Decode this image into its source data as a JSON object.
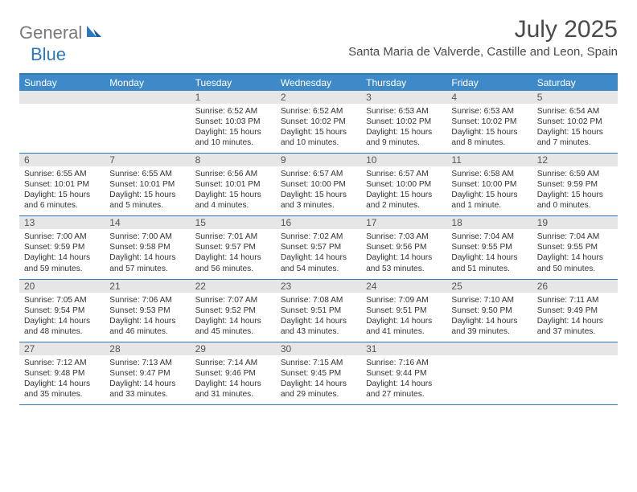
{
  "brand": {
    "part1": "General",
    "part2": "Blue"
  },
  "title": "July 2025",
  "location": "Santa Maria de Valverde, Castille and Leon, Spain",
  "colors": {
    "header_bar": "#3e8ac9",
    "border": "#2d78bc",
    "daynum_bg": "#e6e6e6",
    "text": "#333333",
    "logo_gray": "#7a7a7a",
    "logo_blue": "#2d78bc",
    "background": "#ffffff"
  },
  "typography": {
    "title_fontsize": 30,
    "location_fontsize": 15,
    "dow_fontsize": 12,
    "daynum_fontsize": 12,
    "body_fontsize": 10.2
  },
  "days_of_week": [
    "Sunday",
    "Monday",
    "Tuesday",
    "Wednesday",
    "Thursday",
    "Friday",
    "Saturday"
  ],
  "weeks": [
    [
      {
        "num": "",
        "sunrise": "",
        "sunset": "",
        "daylight": ""
      },
      {
        "num": "",
        "sunrise": "",
        "sunset": "",
        "daylight": ""
      },
      {
        "num": "1",
        "sunrise": "Sunrise: 6:52 AM",
        "sunset": "Sunset: 10:03 PM",
        "daylight": "Daylight: 15 hours and 10 minutes."
      },
      {
        "num": "2",
        "sunrise": "Sunrise: 6:52 AM",
        "sunset": "Sunset: 10:02 PM",
        "daylight": "Daylight: 15 hours and 10 minutes."
      },
      {
        "num": "3",
        "sunrise": "Sunrise: 6:53 AM",
        "sunset": "Sunset: 10:02 PM",
        "daylight": "Daylight: 15 hours and 9 minutes."
      },
      {
        "num": "4",
        "sunrise": "Sunrise: 6:53 AM",
        "sunset": "Sunset: 10:02 PM",
        "daylight": "Daylight: 15 hours and 8 minutes."
      },
      {
        "num": "5",
        "sunrise": "Sunrise: 6:54 AM",
        "sunset": "Sunset: 10:02 PM",
        "daylight": "Daylight: 15 hours and 7 minutes."
      }
    ],
    [
      {
        "num": "6",
        "sunrise": "Sunrise: 6:55 AM",
        "sunset": "Sunset: 10:01 PM",
        "daylight": "Daylight: 15 hours and 6 minutes."
      },
      {
        "num": "7",
        "sunrise": "Sunrise: 6:55 AM",
        "sunset": "Sunset: 10:01 PM",
        "daylight": "Daylight: 15 hours and 5 minutes."
      },
      {
        "num": "8",
        "sunrise": "Sunrise: 6:56 AM",
        "sunset": "Sunset: 10:01 PM",
        "daylight": "Daylight: 15 hours and 4 minutes."
      },
      {
        "num": "9",
        "sunrise": "Sunrise: 6:57 AM",
        "sunset": "Sunset: 10:00 PM",
        "daylight": "Daylight: 15 hours and 3 minutes."
      },
      {
        "num": "10",
        "sunrise": "Sunrise: 6:57 AM",
        "sunset": "Sunset: 10:00 PM",
        "daylight": "Daylight: 15 hours and 2 minutes."
      },
      {
        "num": "11",
        "sunrise": "Sunrise: 6:58 AM",
        "sunset": "Sunset: 10:00 PM",
        "daylight": "Daylight: 15 hours and 1 minute."
      },
      {
        "num": "12",
        "sunrise": "Sunrise: 6:59 AM",
        "sunset": "Sunset: 9:59 PM",
        "daylight": "Daylight: 15 hours and 0 minutes."
      }
    ],
    [
      {
        "num": "13",
        "sunrise": "Sunrise: 7:00 AM",
        "sunset": "Sunset: 9:59 PM",
        "daylight": "Daylight: 14 hours and 59 minutes."
      },
      {
        "num": "14",
        "sunrise": "Sunrise: 7:00 AM",
        "sunset": "Sunset: 9:58 PM",
        "daylight": "Daylight: 14 hours and 57 minutes."
      },
      {
        "num": "15",
        "sunrise": "Sunrise: 7:01 AM",
        "sunset": "Sunset: 9:57 PM",
        "daylight": "Daylight: 14 hours and 56 minutes."
      },
      {
        "num": "16",
        "sunrise": "Sunrise: 7:02 AM",
        "sunset": "Sunset: 9:57 PM",
        "daylight": "Daylight: 14 hours and 54 minutes."
      },
      {
        "num": "17",
        "sunrise": "Sunrise: 7:03 AM",
        "sunset": "Sunset: 9:56 PM",
        "daylight": "Daylight: 14 hours and 53 minutes."
      },
      {
        "num": "18",
        "sunrise": "Sunrise: 7:04 AM",
        "sunset": "Sunset: 9:55 PM",
        "daylight": "Daylight: 14 hours and 51 minutes."
      },
      {
        "num": "19",
        "sunrise": "Sunrise: 7:04 AM",
        "sunset": "Sunset: 9:55 PM",
        "daylight": "Daylight: 14 hours and 50 minutes."
      }
    ],
    [
      {
        "num": "20",
        "sunrise": "Sunrise: 7:05 AM",
        "sunset": "Sunset: 9:54 PM",
        "daylight": "Daylight: 14 hours and 48 minutes."
      },
      {
        "num": "21",
        "sunrise": "Sunrise: 7:06 AM",
        "sunset": "Sunset: 9:53 PM",
        "daylight": "Daylight: 14 hours and 46 minutes."
      },
      {
        "num": "22",
        "sunrise": "Sunrise: 7:07 AM",
        "sunset": "Sunset: 9:52 PM",
        "daylight": "Daylight: 14 hours and 45 minutes."
      },
      {
        "num": "23",
        "sunrise": "Sunrise: 7:08 AM",
        "sunset": "Sunset: 9:51 PM",
        "daylight": "Daylight: 14 hours and 43 minutes."
      },
      {
        "num": "24",
        "sunrise": "Sunrise: 7:09 AM",
        "sunset": "Sunset: 9:51 PM",
        "daylight": "Daylight: 14 hours and 41 minutes."
      },
      {
        "num": "25",
        "sunrise": "Sunrise: 7:10 AM",
        "sunset": "Sunset: 9:50 PM",
        "daylight": "Daylight: 14 hours and 39 minutes."
      },
      {
        "num": "26",
        "sunrise": "Sunrise: 7:11 AM",
        "sunset": "Sunset: 9:49 PM",
        "daylight": "Daylight: 14 hours and 37 minutes."
      }
    ],
    [
      {
        "num": "27",
        "sunrise": "Sunrise: 7:12 AM",
        "sunset": "Sunset: 9:48 PM",
        "daylight": "Daylight: 14 hours and 35 minutes."
      },
      {
        "num": "28",
        "sunrise": "Sunrise: 7:13 AM",
        "sunset": "Sunset: 9:47 PM",
        "daylight": "Daylight: 14 hours and 33 minutes."
      },
      {
        "num": "29",
        "sunrise": "Sunrise: 7:14 AM",
        "sunset": "Sunset: 9:46 PM",
        "daylight": "Daylight: 14 hours and 31 minutes."
      },
      {
        "num": "30",
        "sunrise": "Sunrise: 7:15 AM",
        "sunset": "Sunset: 9:45 PM",
        "daylight": "Daylight: 14 hours and 29 minutes."
      },
      {
        "num": "31",
        "sunrise": "Sunrise: 7:16 AM",
        "sunset": "Sunset: 9:44 PM",
        "daylight": "Daylight: 14 hours and 27 minutes."
      },
      {
        "num": "",
        "sunrise": "",
        "sunset": "",
        "daylight": ""
      },
      {
        "num": "",
        "sunrise": "",
        "sunset": "",
        "daylight": ""
      }
    ]
  ]
}
